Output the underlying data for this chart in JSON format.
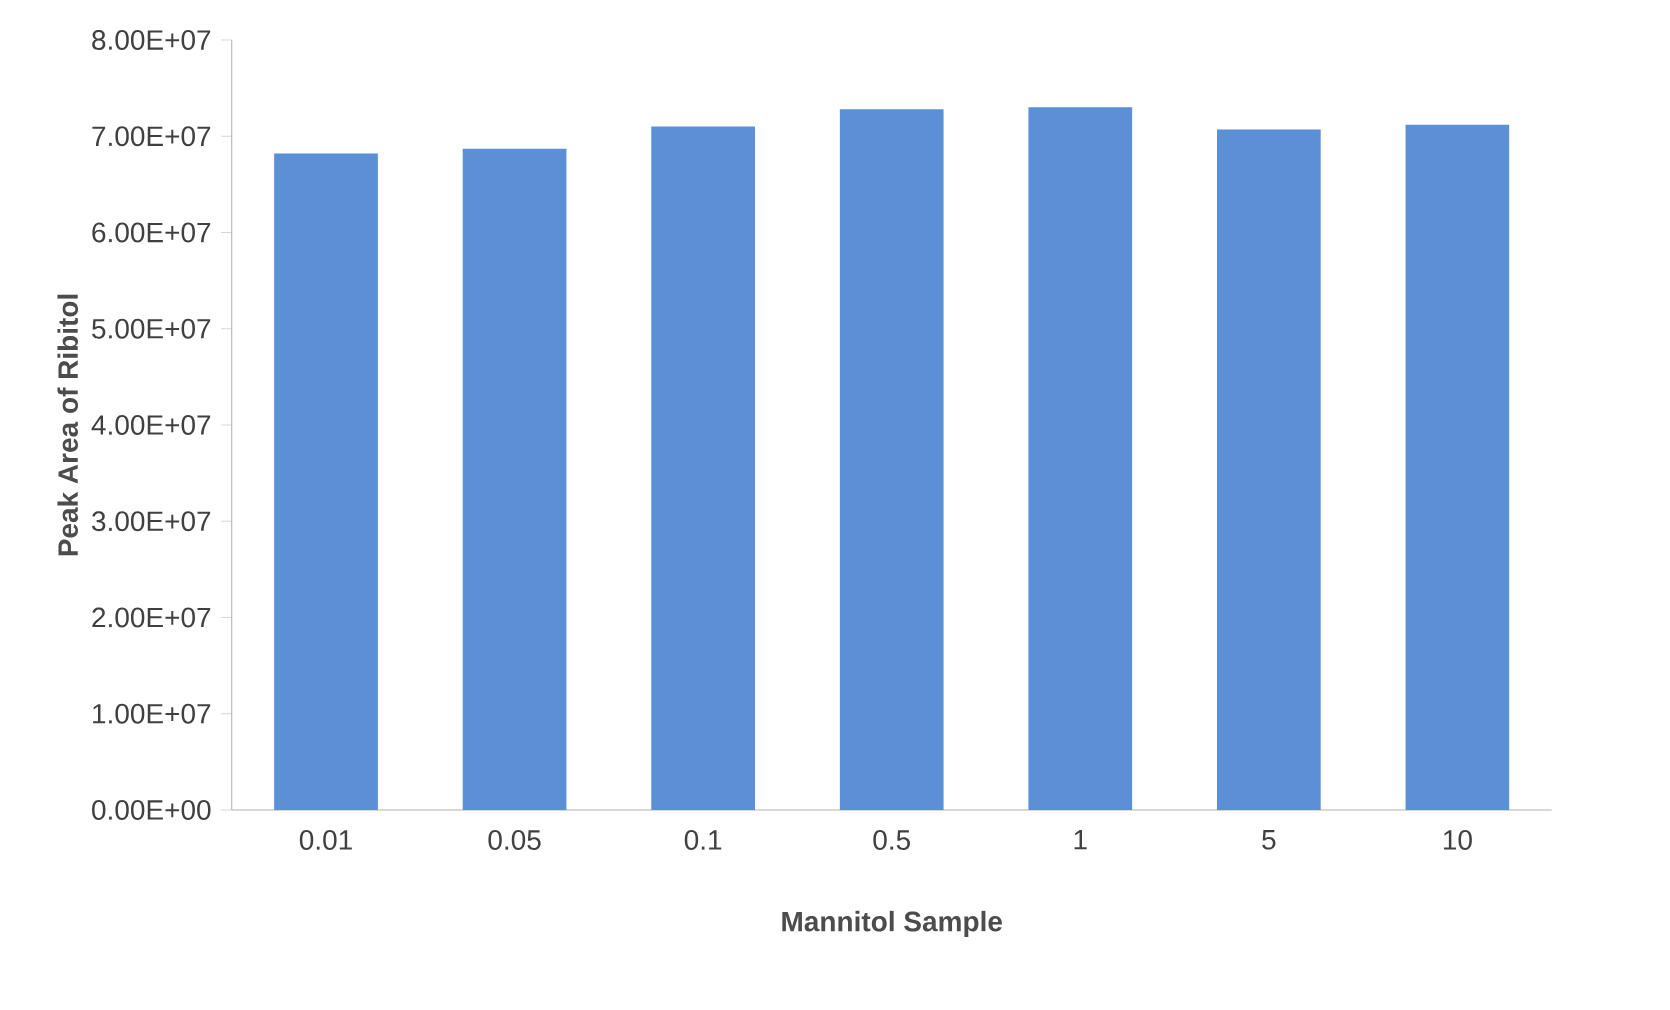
{
  "chart_data": {
    "type": "bar",
    "xlabel": "Mannitol Sample",
    "ylabel": "Peak Area of Ribitol",
    "categories": [
      "0.01",
      "0.05",
      "0.1",
      "0.5",
      "1",
      "5",
      "10"
    ],
    "values": [
      68200000,
      68700000,
      71000000,
      72800000,
      73000000,
      70700000,
      71200000
    ],
    "color": "#5b8fd6",
    "ylim": [
      0,
      80000000
    ],
    "yticks": [
      {
        "value": 0,
        "label": "0.00E+00"
      },
      {
        "value": 10000000,
        "label": "1.00E+07"
      },
      {
        "value": 20000000,
        "label": "2.00E+07"
      },
      {
        "value": 30000000,
        "label": "3.00E+07"
      },
      {
        "value": 40000000,
        "label": "4.00E+07"
      },
      {
        "value": 50000000,
        "label": "5.00E+07"
      },
      {
        "value": 60000000,
        "label": "6.00E+07"
      },
      {
        "value": 70000000,
        "label": "7.00E+07"
      },
      {
        "value": 80000000,
        "label": "8.00E+07"
      }
    ],
    "grid": false
  }
}
